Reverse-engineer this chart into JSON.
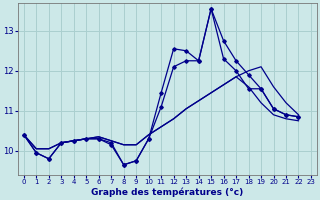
{
  "xlabel": "Graphe des températures (°c)",
  "background_color": "#cce8e8",
  "grid_color": "#aacfcf",
  "line_color": "#00008b",
  "x_ticks": [
    0,
    1,
    2,
    3,
    4,
    5,
    6,
    7,
    8,
    9,
    10,
    11,
    12,
    13,
    14,
    15,
    16,
    17,
    18,
    19,
    20,
    21,
    22,
    23
  ],
  "y_ticks": [
    10,
    11,
    12,
    13
  ],
  "ylim": [
    9.4,
    13.7
  ],
  "xlim": [
    -0.5,
    23.5
  ],
  "series_zigzag1": [
    10.4,
    9.95,
    9.8,
    10.2,
    10.25,
    10.3,
    10.3,
    10.2,
    9.65,
    9.75,
    10.3,
    11.45,
    12.55,
    12.5,
    12.25,
    13.55,
    12.75,
    12.25,
    11.9,
    11.55,
    11.05,
    10.9,
    10.85
  ],
  "series_zigzag2": [
    10.4,
    9.95,
    9.8,
    10.2,
    10.25,
    10.3,
    10.3,
    10.15,
    9.65,
    9.75,
    10.3,
    11.1,
    12.1,
    12.25,
    12.25,
    13.55,
    12.3,
    12.0,
    11.55,
    11.55,
    11.05,
    10.9,
    10.85
  ],
  "series_linear1": [
    10.4,
    10.05,
    10.05,
    10.2,
    10.25,
    10.3,
    10.35,
    10.25,
    10.15,
    10.15,
    10.4,
    10.6,
    10.8,
    11.05,
    11.25,
    11.45,
    11.65,
    11.85,
    12.0,
    12.1,
    11.6,
    11.2,
    10.9
  ],
  "series_linear2": [
    10.4,
    10.05,
    10.05,
    10.2,
    10.25,
    10.3,
    10.35,
    10.25,
    10.15,
    10.15,
    10.4,
    10.6,
    10.8,
    11.05,
    11.25,
    11.45,
    11.65,
    11.85,
    11.6,
    11.2,
    10.9,
    10.8,
    10.75
  ]
}
